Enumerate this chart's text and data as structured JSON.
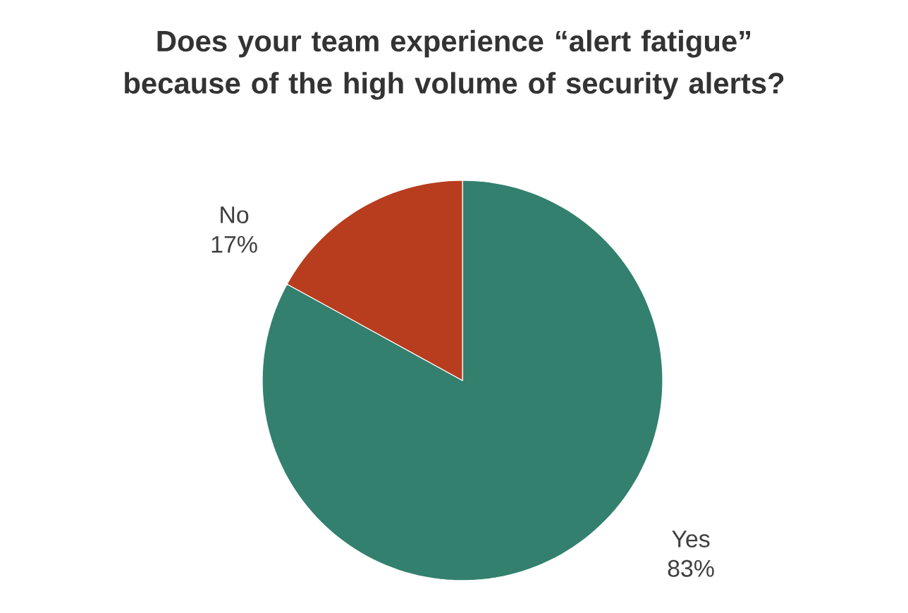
{
  "chart_data": {
    "type": "pie",
    "title": "Does your team experience “alert fatigue” because of the high volume of security alerts?",
    "categories": [
      "Yes",
      "No"
    ],
    "values": [
      83,
      17
    ],
    "value_labels": [
      "83%",
      "17%"
    ],
    "colors": [
      "#33806f",
      "#b83d1f"
    ]
  }
}
